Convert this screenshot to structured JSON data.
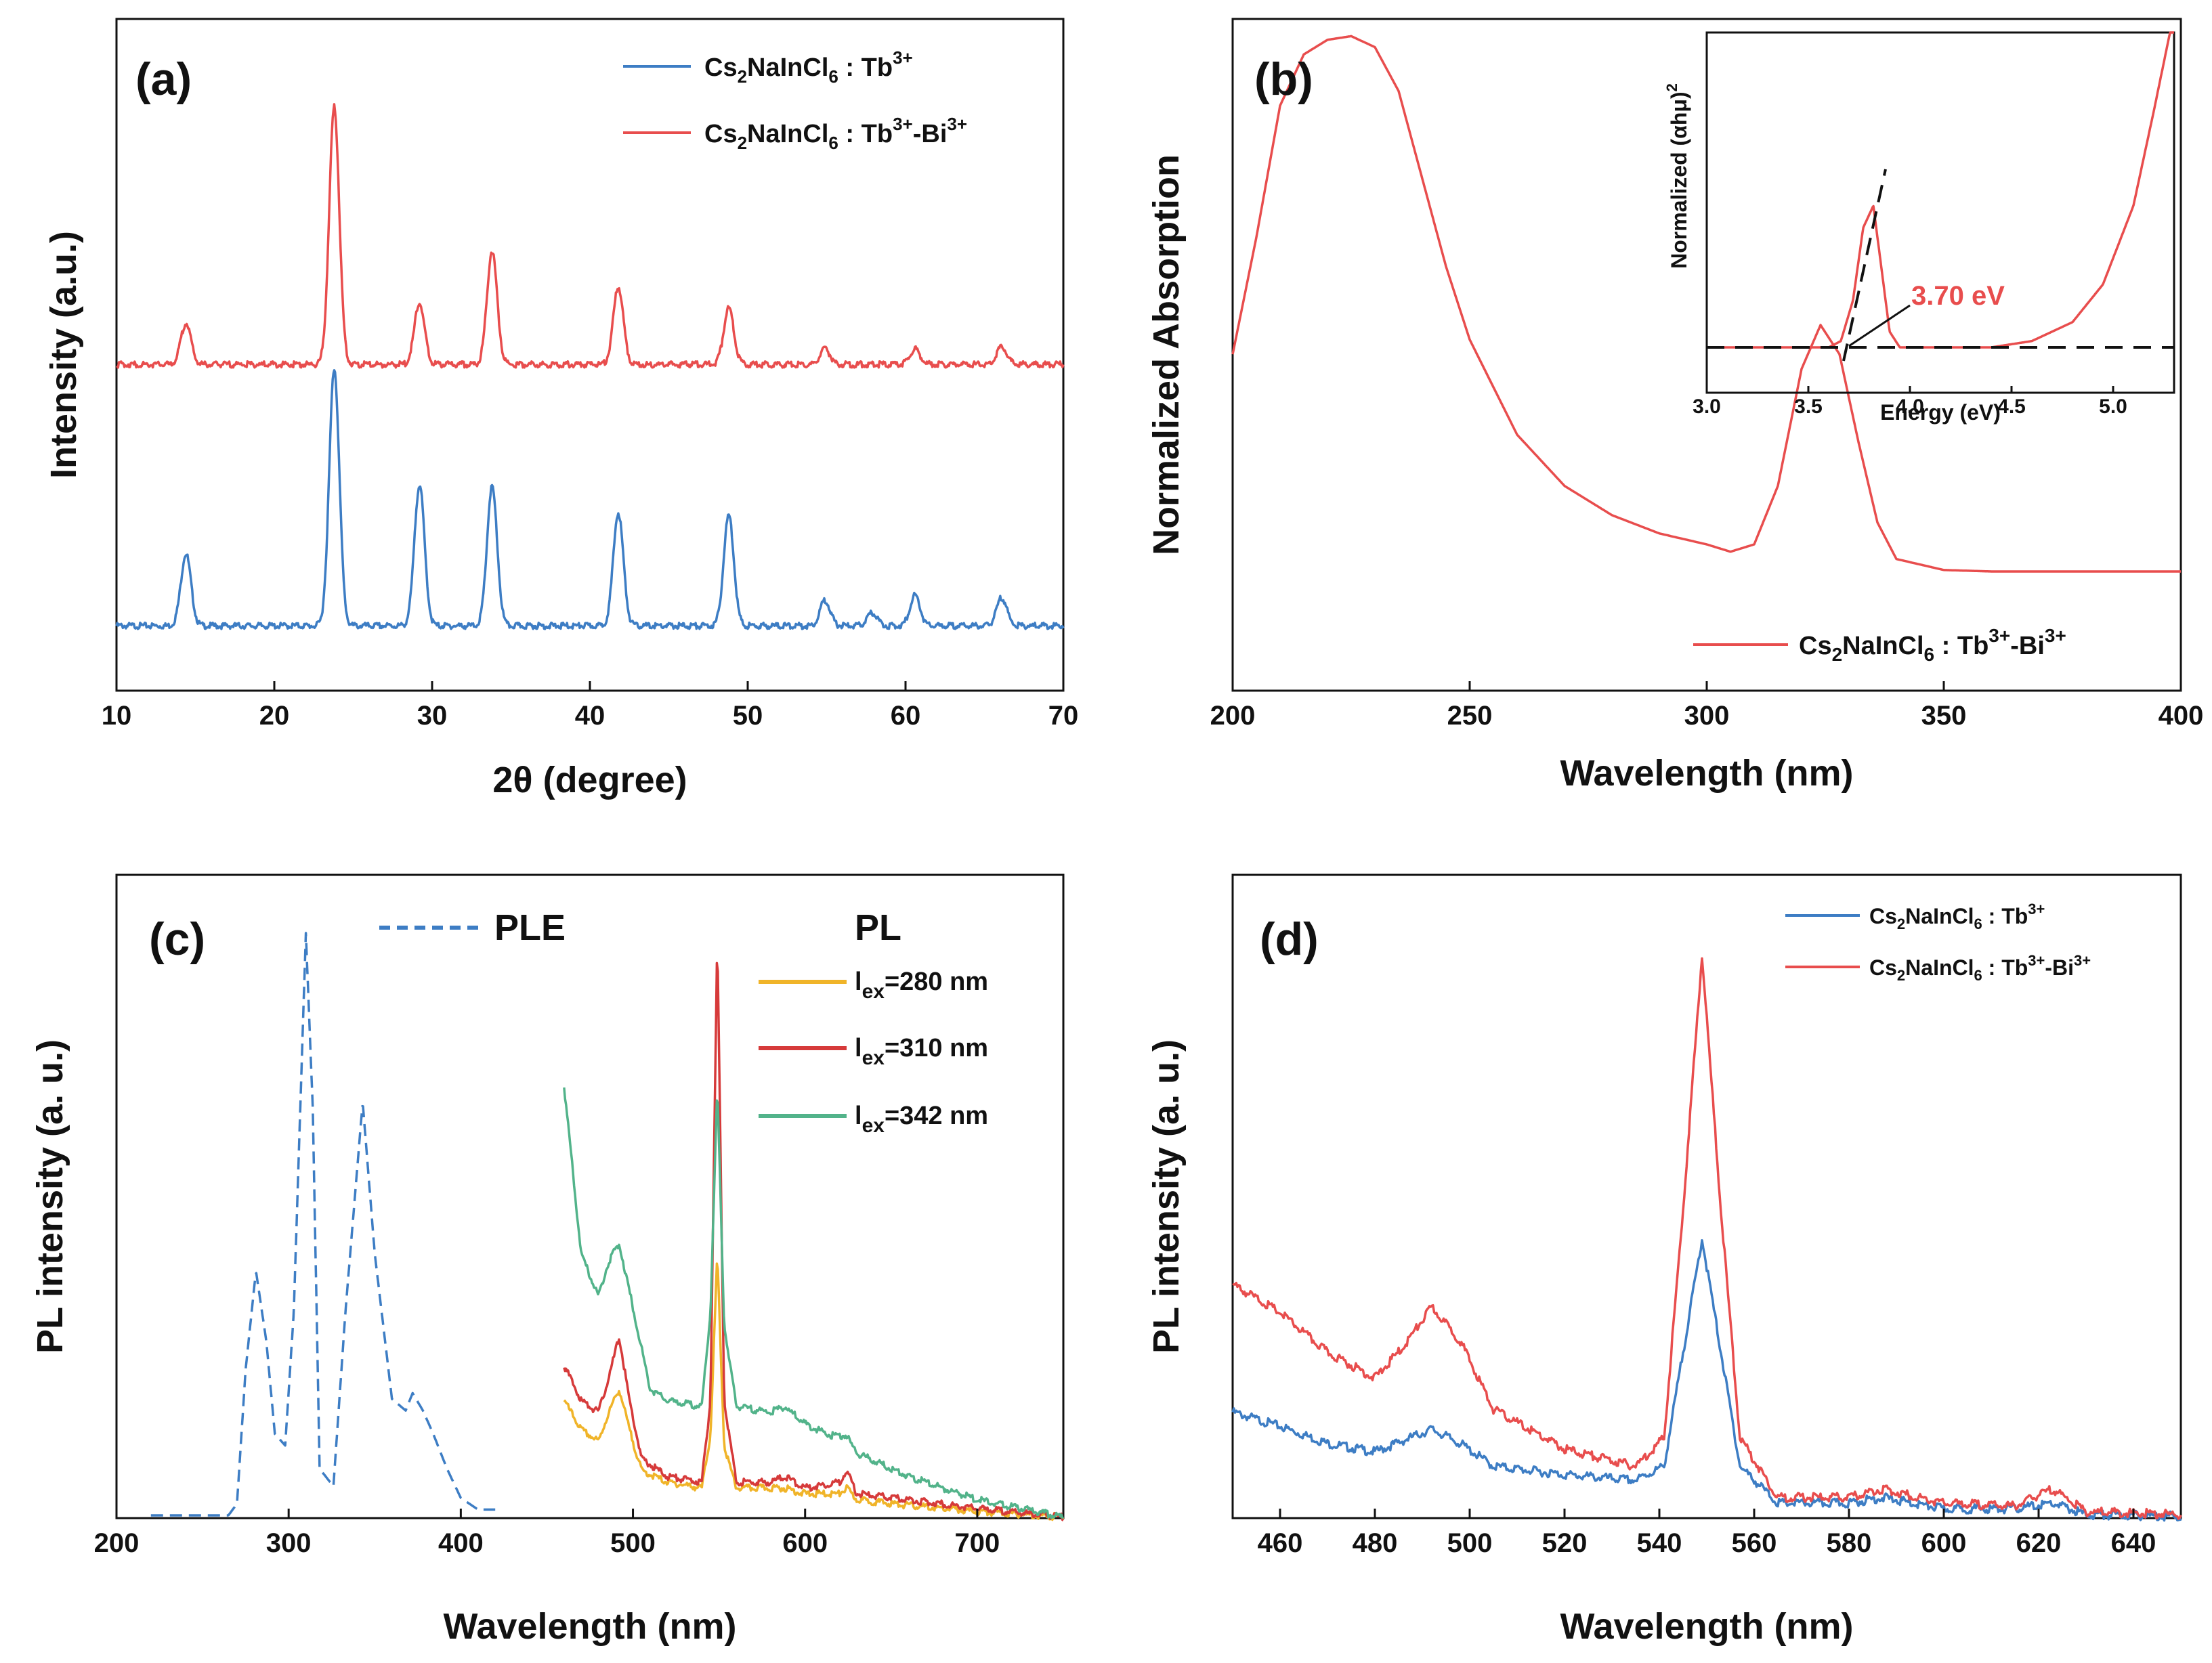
{
  "chart_data": [
    {
      "panel": "(a)",
      "type": "line",
      "xlabel": "2θ (degree)",
      "ylabel": "Intensity (a.u.)",
      "xlim": [
        10,
        70
      ],
      "xticks": [
        10,
        20,
        30,
        40,
        50,
        60,
        70
      ],
      "legend": [
        "Cs2NaInCl6 : Tb3+",
        "Cs2NaInCl6 : Tb3+-Bi3+"
      ],
      "legend_position": "top-right",
      "series": [
        {
          "name": "Cs2NaInCl6 : Tb3+",
          "color": "#3d7dc4",
          "offset": 0,
          "peaks": [
            [
              14.4,
              28
            ],
            [
              23.8,
              100
            ],
            [
              29.2,
              55
            ],
            [
              33.8,
              54
            ],
            [
              41.8,
              44
            ],
            [
              48.8,
              43
            ],
            [
              54.9,
              10
            ],
            [
              57.9,
              5
            ],
            [
              60.6,
              12
            ],
            [
              66.1,
              11
            ]
          ]
        },
        {
          "name": "Cs2NaInCl6 : Tb3+-Bi3+",
          "color": "#e84d4d",
          "offset": 1,
          "peaks": [
            [
              14.4,
              16
            ],
            [
              23.8,
              100
            ],
            [
              29.2,
              24
            ],
            [
              33.8,
              44
            ],
            [
              41.8,
              30
            ],
            [
              48.8,
              22
            ],
            [
              54.9,
              6
            ],
            [
              60.6,
              6
            ],
            [
              66.1,
              7
            ]
          ]
        }
      ]
    },
    {
      "panel": "(b)",
      "type": "line",
      "xlabel": "Wavelength (nm)",
      "ylabel": "Normalized Absorption",
      "xlim": [
        200,
        400
      ],
      "xticks": [
        200,
        250,
        300,
        350,
        400
      ],
      "legend": [
        "Cs2NaInCl6 :  Tb3+-Bi3+"
      ],
      "legend_position": "bottom-right",
      "series": [
        {
          "name": "Cs2NaInCl6 :  Tb3+-Bi3+",
          "color": "#e84d4d",
          "points": [
            [
              200,
              0.46
            ],
            [
              205,
              0.62
            ],
            [
              210,
              0.8
            ],
            [
              215,
              0.87
            ],
            [
              220,
              0.89
            ],
            [
              225,
              0.895
            ],
            [
              230,
              0.88
            ],
            [
              235,
              0.82
            ],
            [
              240,
              0.7
            ],
            [
              245,
              0.58
            ],
            [
              250,
              0.48
            ],
            [
              260,
              0.35
            ],
            [
              270,
              0.28
            ],
            [
              280,
              0.24
            ],
            [
              290,
              0.215
            ],
            [
              300,
              0.2
            ],
            [
              305,
              0.19
            ],
            [
              310,
              0.2
            ],
            [
              315,
              0.28
            ],
            [
              320,
              0.44
            ],
            [
              324,
              0.5
            ],
            [
              328,
              0.46
            ],
            [
              332,
              0.34
            ],
            [
              336,
              0.23
            ],
            [
              340,
              0.18
            ],
            [
              350,
              0.165
            ],
            [
              360,
              0.163
            ],
            [
              400,
              0.163
            ]
          ]
        }
      ],
      "inset": {
        "xlabel": "Energy (eV)",
        "ylabel": "Normalized (αhμ)2",
        "xlim": [
          3.0,
          5.3
        ],
        "xticks": [
          3.0,
          3.5,
          4.0,
          4.5,
          5.0
        ],
        "annotation": "3.70 eV",
        "band_gap_ev": 3.7,
        "points": [
          [
            3.0,
            0
          ],
          [
            3.6,
            0
          ],
          [
            3.66,
            0.02
          ],
          [
            3.72,
            0.15
          ],
          [
            3.77,
            0.38
          ],
          [
            3.82,
            0.45
          ],
          [
            3.86,
            0.25
          ],
          [
            3.9,
            0.05
          ],
          [
            3.95,
            0
          ],
          [
            4.4,
            0
          ],
          [
            4.6,
            0.02
          ],
          [
            4.8,
            0.08
          ],
          [
            4.95,
            0.2
          ],
          [
            5.1,
            0.45
          ],
          [
            5.2,
            0.75
          ],
          [
            5.28,
            1.0
          ]
        ]
      }
    },
    {
      "panel": "(c)",
      "type": "line",
      "xlabel": "Wavelength (nm)",
      "ylabel": "PL intensity (a. u.)",
      "xlim": [
        200,
        750
      ],
      "xticks": [
        200,
        300,
        400,
        500,
        600,
        700
      ],
      "legend_ple": "PLE",
      "legend_pl_title": "PL",
      "series": [
        {
          "name": "PLE",
          "color": "#3d7dc4",
          "style": "dashed",
          "points": [
            [
              220,
              0
            ],
            [
              265,
              0
            ],
            [
              270,
              0.02
            ],
            [
              275,
              0.25
            ],
            [
              281,
              0.42
            ],
            [
              287,
              0.3
            ],
            [
              292,
              0.14
            ],
            [
              298,
              0.12
            ],
            [
              303,
              0.35
            ],
            [
              310,
              1.0
            ],
            [
              314,
              0.7
            ],
            [
              318,
              0.08
            ],
            [
              326,
              0.05
            ],
            [
              333,
              0.35
            ],
            [
              343,
              0.71
            ],
            [
              350,
              0.45
            ],
            [
              360,
              0.2
            ],
            [
              368,
              0.18
            ],
            [
              372,
              0.21
            ],
            [
              378,
              0.18
            ],
            [
              384,
              0.14
            ],
            [
              392,
              0.08
            ],
            [
              400,
              0.03
            ],
            [
              410,
              0.01
            ],
            [
              420,
              0.01
            ]
          ]
        },
        {
          "name": "lex=280 nm",
          "color": "#f0b429",
          "points": [
            [
              460,
              0.2
            ],
            [
              470,
              0.15
            ],
            [
              480,
              0.13
            ],
            [
              486,
              0.18
            ],
            [
              492,
              0.22
            ],
            [
              498,
              0.15
            ],
            [
              505,
              0.08
            ],
            [
              520,
              0.06
            ],
            [
              540,
              0.05
            ],
            [
              545,
              0.14
            ],
            [
              549,
              0.45
            ],
            [
              553,
              0.12
            ],
            [
              560,
              0.05
            ],
            [
              580,
              0.05
            ],
            [
              588,
              0.05
            ],
            [
              600,
              0.04
            ],
            [
              620,
              0.04
            ],
            [
              624,
              0.05
            ],
            [
              630,
              0.03
            ],
            [
              660,
              0.02
            ],
            [
              700,
              0.01
            ],
            [
              750,
              0.0
            ]
          ]
        },
        {
          "name": "lex=310 nm",
          "color": "#d63a3a",
          "points": [
            [
              460,
              0.26
            ],
            [
              470,
              0.2
            ],
            [
              480,
              0.18
            ],
            [
              486,
              0.24
            ],
            [
              492,
              0.31
            ],
            [
              498,
              0.2
            ],
            [
              505,
              0.1
            ],
            [
              520,
              0.07
            ],
            [
              540,
              0.06
            ],
            [
              545,
              0.2
            ],
            [
              549,
              1.0
            ],
            [
              553,
              0.2
            ],
            [
              560,
              0.06
            ],
            [
              580,
              0.06
            ],
            [
              588,
              0.07
            ],
            [
              600,
              0.05
            ],
            [
              620,
              0.06
            ],
            [
              624,
              0.08
            ],
            [
              630,
              0.04
            ],
            [
              660,
              0.03
            ],
            [
              700,
              0.015
            ],
            [
              750,
              0.0
            ]
          ]
        },
        {
          "name": "lex=342 nm",
          "color": "#52b38a",
          "points": [
            [
              460,
              0.74
            ],
            [
              470,
              0.45
            ],
            [
              480,
              0.38
            ],
            [
              486,
              0.44
            ],
            [
              492,
              0.47
            ],
            [
              500,
              0.36
            ],
            [
              510,
              0.22
            ],
            [
              520,
              0.2
            ],
            [
              540,
              0.19
            ],
            [
              545,
              0.35
            ],
            [
              549,
              0.74
            ],
            [
              553,
              0.33
            ],
            [
              560,
              0.19
            ],
            [
              580,
              0.18
            ],
            [
              588,
              0.19
            ],
            [
              600,
              0.16
            ],
            [
              615,
              0.14
            ],
            [
              624,
              0.14
            ],
            [
              630,
              0.11
            ],
            [
              660,
              0.07
            ],
            [
              700,
              0.03
            ],
            [
              750,
              0.0
            ]
          ]
        }
      ]
    },
    {
      "panel": "(d)",
      "type": "line",
      "xlabel": "Wavelength (nm)",
      "ylabel": "PL intensity (a. u.)",
      "xlim": [
        450,
        650
      ],
      "xticks": [
        460,
        480,
        500,
        520,
        540,
        560,
        580,
        600,
        620,
        640
      ],
      "legend": [
        "Cs2NaInCl6 :  Tb3+",
        "Cs2NaInCl6 :  Tb3+-Bi3+"
      ],
      "legend_position": "top-right",
      "series": [
        {
          "name": "Cs2NaInCl6 :  Tb3+",
          "color": "#3d7dc4",
          "points": [
            [
              450,
              0.195
            ],
            [
              460,
              0.17
            ],
            [
              470,
              0.14
            ],
            [
              480,
              0.125
            ],
            [
              486,
              0.145
            ],
            [
              492,
              0.165
            ],
            [
              498,
              0.14
            ],
            [
              505,
              0.1
            ],
            [
              520,
              0.085
            ],
            [
              535,
              0.075
            ],
            [
              541,
              0.1
            ],
            [
              545,
              0.3
            ],
            [
              549,
              0.5
            ],
            [
              553,
              0.3
            ],
            [
              557,
              0.1
            ],
            [
              565,
              0.035
            ],
            [
              580,
              0.035
            ],
            [
              587,
              0.045
            ],
            [
              600,
              0.025
            ],
            [
              615,
              0.025
            ],
            [
              623,
              0.035
            ],
            [
              630,
              0.015
            ],
            [
              650,
              0.012
            ]
          ]
        },
        {
          "name": "Cs2NaInCl6 :  Tb3+-Bi3+",
          "color": "#e84d4d",
          "points": [
            [
              450,
              0.42
            ],
            [
              460,
              0.37
            ],
            [
              470,
              0.3
            ],
            [
              480,
              0.255
            ],
            [
              486,
              0.31
            ],
            [
              492,
              0.38
            ],
            [
              498,
              0.32
            ],
            [
              505,
              0.2
            ],
            [
              520,
              0.13
            ],
            [
              535,
              0.1
            ],
            [
              541,
              0.15
            ],
            [
              545,
              0.55
            ],
            [
              549,
              1.0
            ],
            [
              553,
              0.55
            ],
            [
              557,
              0.15
            ],
            [
              565,
              0.045
            ],
            [
              580,
              0.045
            ],
            [
              587,
              0.06
            ],
            [
              600,
              0.035
            ],
            [
              615,
              0.03
            ],
            [
              623,
              0.06
            ],
            [
              630,
              0.02
            ],
            [
              650,
              0.015
            ]
          ]
        }
      ]
    }
  ],
  "labels": {
    "panel_a": "(a)",
    "panel_b": "(b)",
    "panel_c": "(c)",
    "panel_d": "(d)",
    "a_xlabel": "2θ (degree)",
    "a_ylabel": "Intensity (a.u.)",
    "b_xlabel": "Wavelength (nm)",
    "b_ylabel": "Normalized Absorption",
    "b_inset_xlabel": "Energy (eV)",
    "b_inset_annot": "3.70 eV",
    "c_xlabel": "Wavelength (nm)",
    "c_ylabel": "PL intensity (a. u.)",
    "c_ple": "PLE",
    "c_pl": "PL",
    "d_xlabel": "Wavelength (nm)",
    "d_ylabel": "PL intensity (a. u.)"
  }
}
